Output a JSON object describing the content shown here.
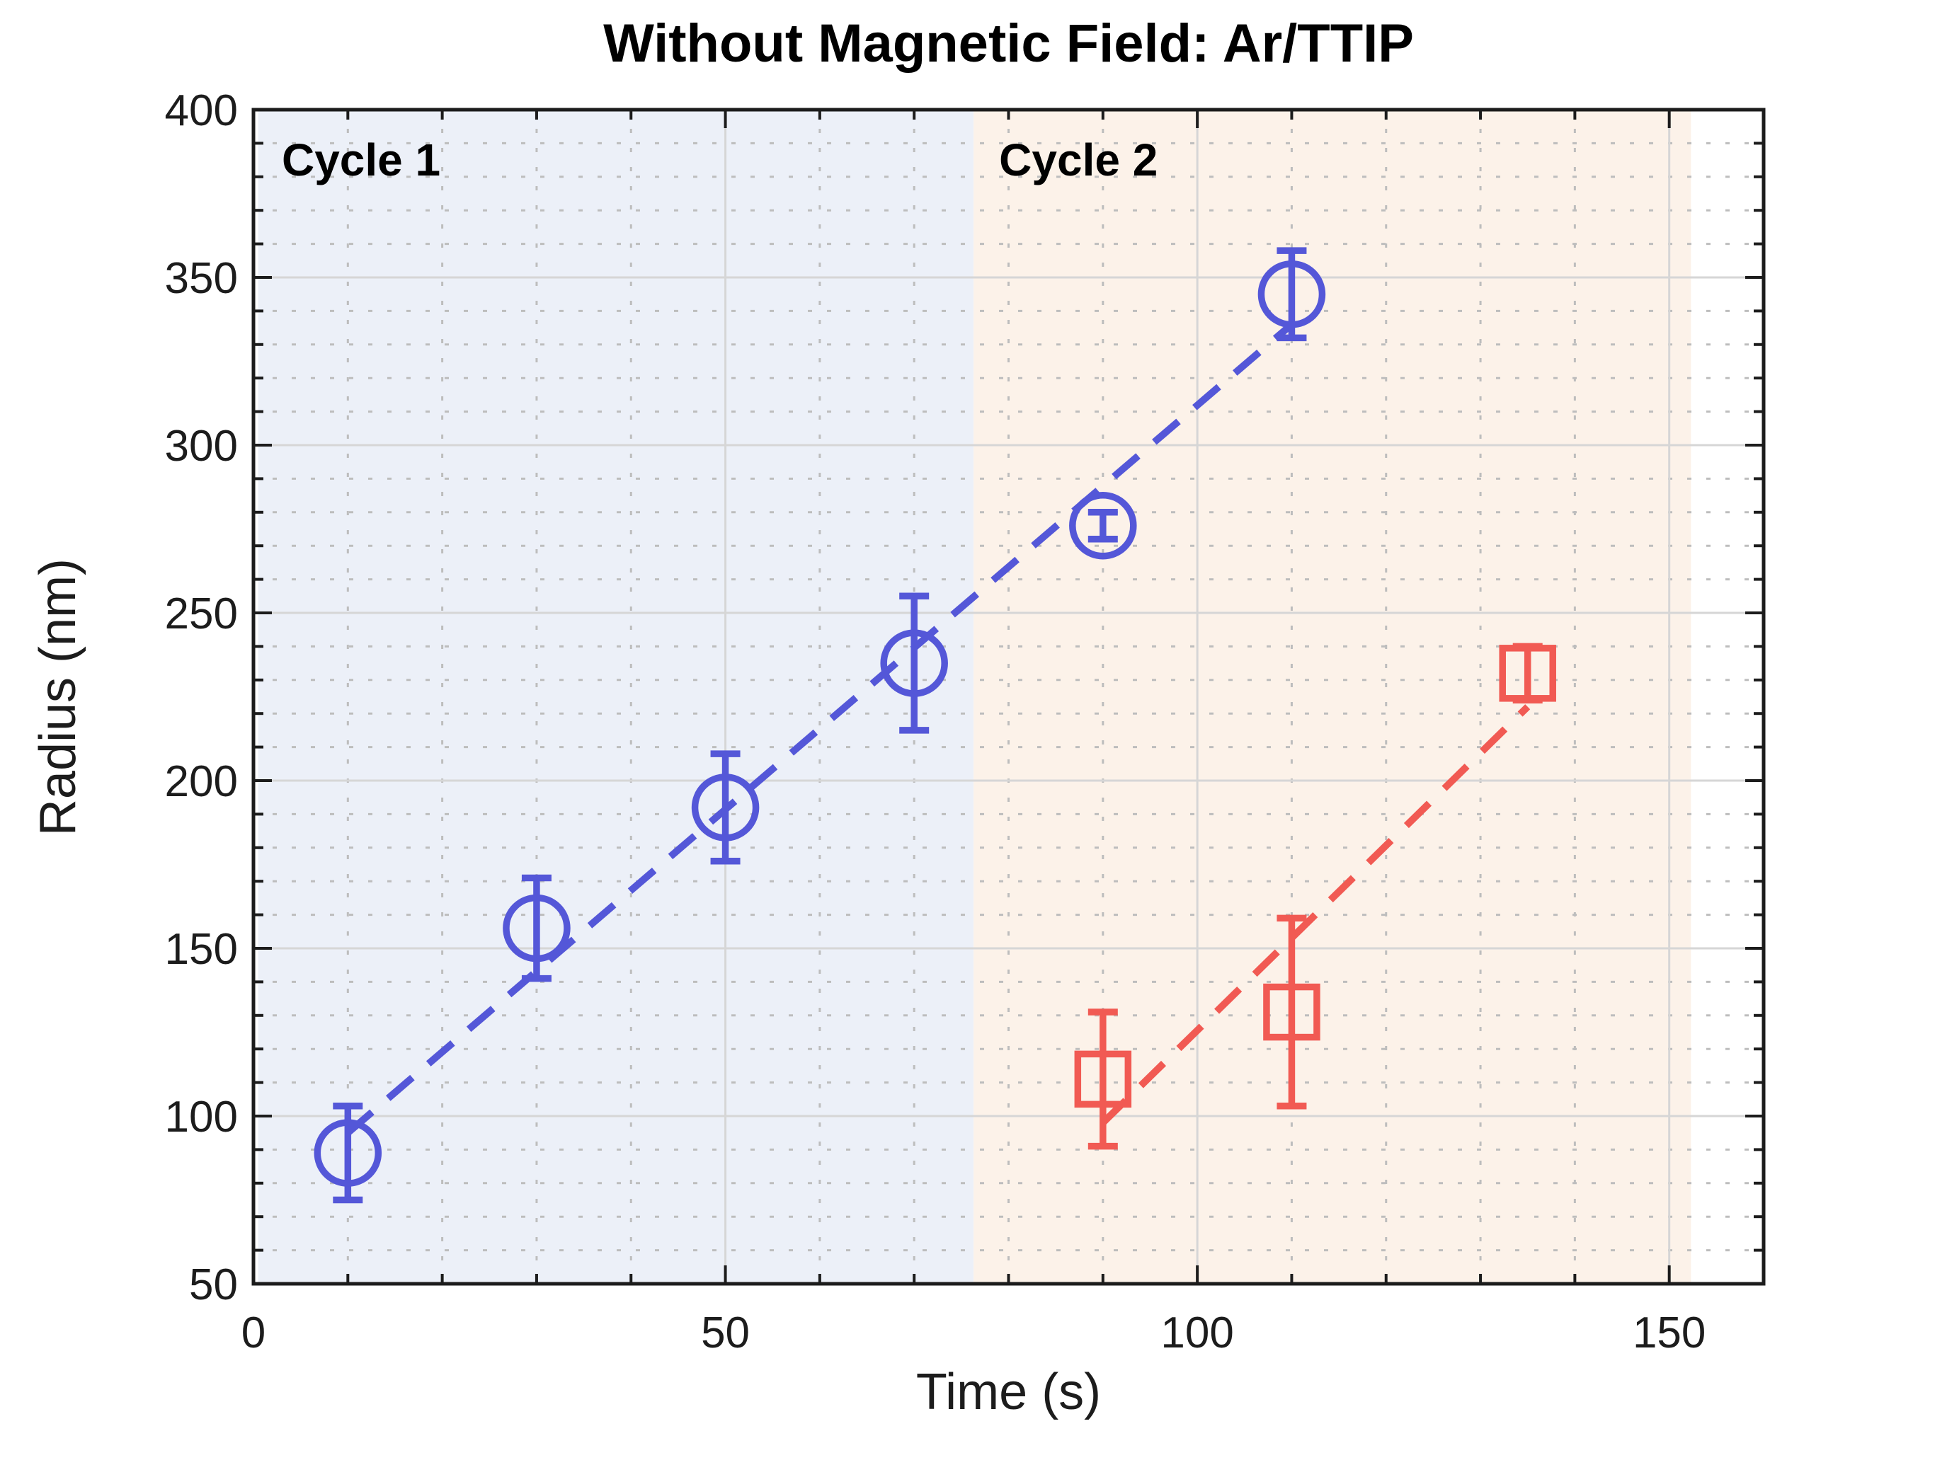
{
  "chart_data": {
    "type": "scatter",
    "title": "Without Magnetic Field: Ar/TTIP",
    "xlabel": "Time (s)",
    "ylabel": "Radius (nm)",
    "xlim": [
      0,
      160
    ],
    "ylim": [
      50,
      400
    ],
    "xticks": [
      0,
      50,
      100,
      150
    ],
    "yticks": [
      50,
      100,
      150,
      200,
      250,
      300,
      350,
      400
    ],
    "minor_step_x": 10,
    "minor_step_y": 10,
    "grid": {
      "major": "solid",
      "minor": "dotted"
    },
    "legend": "none",
    "annotations": [
      {
        "text": "Cycle 1",
        "x": 3,
        "y": 385
      },
      {
        "text": "Cycle 2",
        "x": 79,
        "y": 385
      }
    ],
    "bands": [
      {
        "name": "cycle-1-region",
        "x0": 0.5,
        "x1": 76.3,
        "color": "#ECF0F8"
      },
      {
        "name": "cycle-2-region",
        "x0": 76.3,
        "x1": 152.3,
        "color": "#FCF2E9"
      }
    ],
    "series": [
      {
        "name": "Cycle 1",
        "marker": "circle",
        "color": "#5457D8",
        "x": [
          10,
          30,
          50,
          70,
          90,
          110
        ],
        "y": [
          89,
          156,
          192,
          235,
          276,
          345
        ],
        "yerr": [
          14,
          15,
          16,
          20,
          4,
          13
        ],
        "trend": {
          "style": "dashed",
          "x": [
            10,
            110
          ],
          "y": [
            95,
            336
          ]
        }
      },
      {
        "name": "Cycle 2",
        "marker": "square",
        "color": "#F15A53",
        "x": [
          90,
          110,
          135
        ],
        "y": [
          111,
          131,
          232
        ],
        "yerr": [
          20,
          28,
          8
        ],
        "trend": {
          "style": "dashed",
          "x": [
            90,
            135
          ],
          "y": [
            98,
            222
          ]
        }
      }
    ],
    "colors": {
      "spine": "#1c1c1c",
      "tick": "#1c1c1c",
      "tick_label": "#1c1c1c",
      "grid_major": "#D6D6D6",
      "grid_minor": "#BDBDBD",
      "background": "#FFFFFF"
    }
  }
}
